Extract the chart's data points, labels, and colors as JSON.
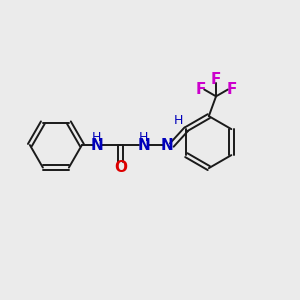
{
  "background_color": "#ebebeb",
  "bond_color": "#1a1a1a",
  "N_color": "#0000bb",
  "O_color": "#dd0000",
  "F_color": "#cc00cc",
  "figsize": [
    3.0,
    3.0
  ],
  "dpi": 100,
  "xlim": [
    0,
    12
  ],
  "ylim": [
    0,
    12
  ]
}
